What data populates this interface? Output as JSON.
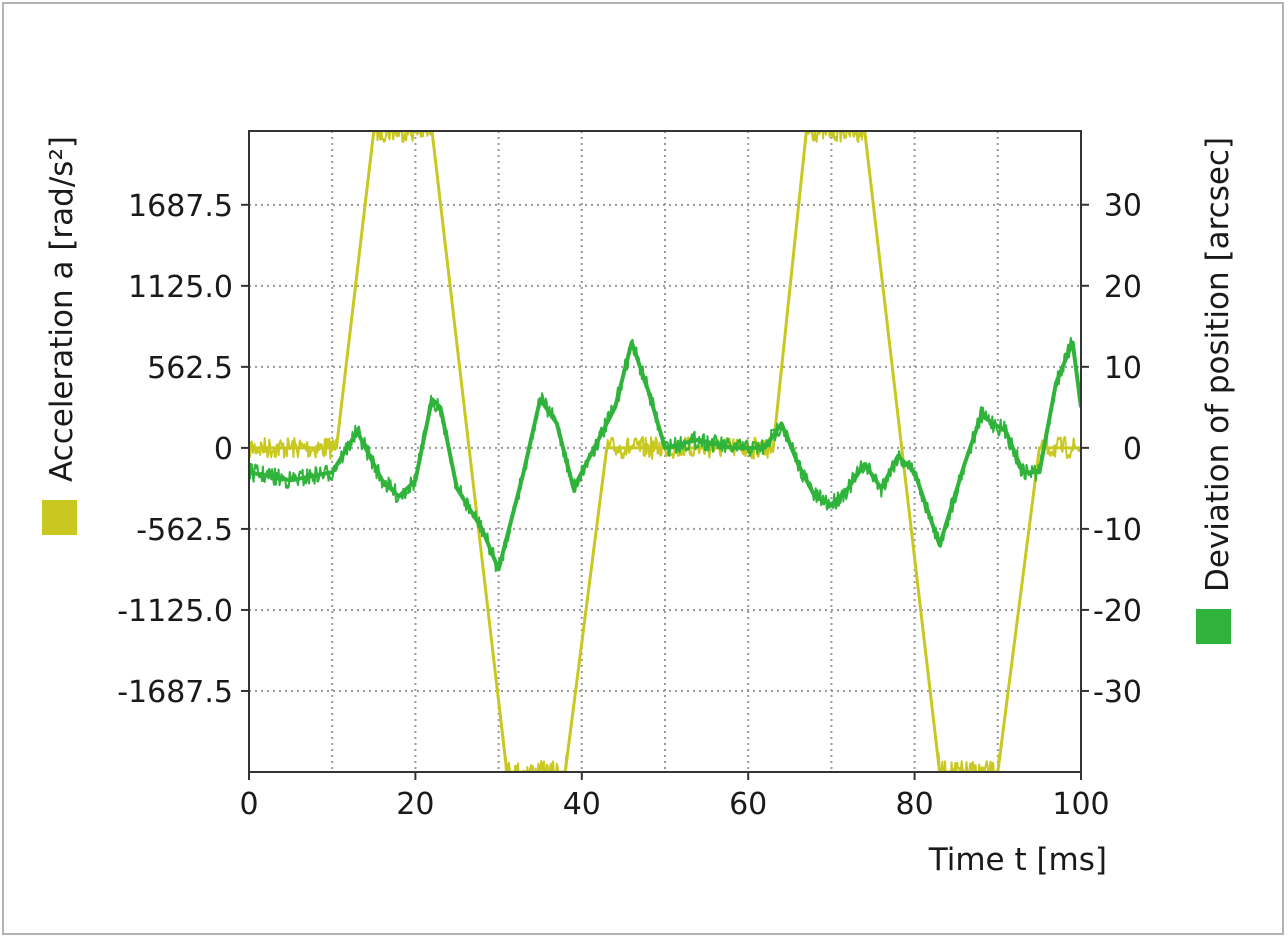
{
  "chart_data": {
    "type": "line",
    "xlabel": "Time t [ms]",
    "ylabel_left": "Acceleration a [rad/s²]",
    "ylabel_right": "Deviation of position [arcsec]",
    "xlim": [
      0,
      100
    ],
    "ylim_left": [
      -2250,
      2200
    ],
    "ylim_right": [
      -40,
      39.1
    ],
    "x_ticks": [
      0,
      10,
      20,
      30,
      40,
      50,
      60,
      70,
      80,
      90,
      100
    ],
    "x_tick_labels": [
      "0",
      "20",
      "40",
      "60",
      "80",
      "100"
    ],
    "x_tick_label_values": [
      0,
      20,
      40,
      60,
      80,
      100
    ],
    "y_left_ticks": [
      1687.5,
      1125.0,
      562.5,
      0,
      -562.5,
      -1125.0,
      -1687.5
    ],
    "y_left_tick_labels": [
      "1687.5",
      "1125.0",
      "562.5",
      "0",
      "-562.5",
      "-1125.0",
      "-1687.5"
    ],
    "y_right_ticks": [
      30,
      20,
      10,
      0,
      -10,
      -20,
      -30
    ],
    "y_right_tick_labels": [
      "30",
      "20",
      "10",
      "0",
      "-10",
      "-20",
      "-30"
    ],
    "grid": true,
    "colors": {
      "acceleration": "#c8c820",
      "deviation": "#2fb33a",
      "grid": "#9a9a9a",
      "frame": "#333333"
    },
    "series": [
      {
        "axis": "left",
        "color": "#c8c820",
        "x": [
          0,
          10.5,
          15,
          22,
          31,
          38,
          43,
          63,
          67,
          74,
          83,
          90,
          95,
          100
        ],
        "y": [
          0,
          0,
          2200,
          2200,
          -2250,
          -2250,
          0,
          0,
          2200,
          2200,
          -2250,
          -2250,
          0,
          0
        ]
      },
      {
        "axis": "right",
        "color": "#2fb33a",
        "x": [
          0,
          5,
          10,
          13,
          16,
          18,
          20,
          22,
          23,
          25,
          28,
          30,
          33,
          35,
          37,
          39,
          42,
          44,
          46,
          48,
          50,
          54,
          58,
          62,
          64,
          66,
          68,
          70,
          72,
          74,
          76,
          78,
          80,
          81,
          83,
          86,
          88,
          91,
          93,
          95,
          97,
          99,
          100
        ],
        "y": [
          -3,
          -4,
          -3,
          2,
          -4,
          -6,
          -4,
          6,
          5,
          -5,
          -10,
          -15,
          -3,
          6,
          3,
          -5,
          1,
          5,
          13,
          7,
          0,
          1,
          0,
          0,
          3,
          -2,
          -6,
          -7,
          -5,
          -2,
          -5,
          -1,
          -3,
          -6,
          -12,
          -2,
          4,
          2,
          -3,
          -3,
          8,
          13,
          5
        ]
      }
    ]
  }
}
